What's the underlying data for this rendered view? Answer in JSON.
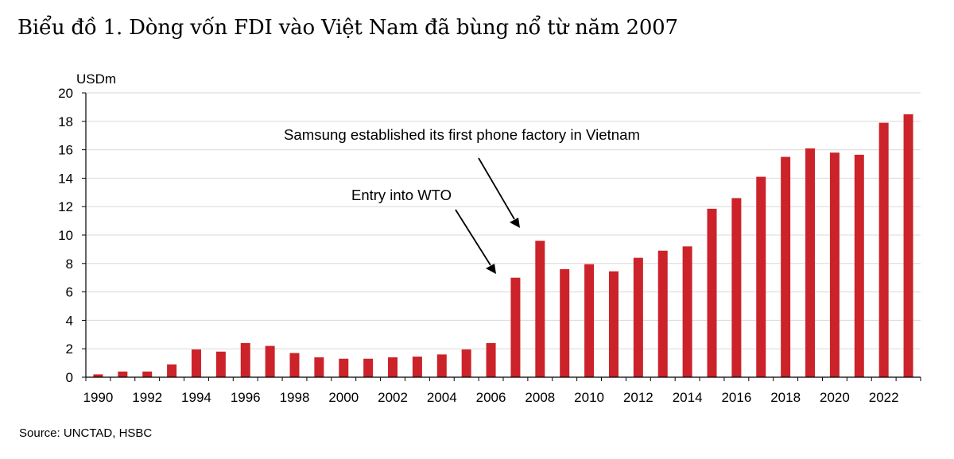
{
  "title": "Biểu đồ 1. Dòng vốn FDI vào Việt Nam đã bùng nổ từ năm 2007",
  "source": "Source: UNCTAD, HSBC",
  "colors": {
    "bar": "#CC2229",
    "grid": "#D9D9D9",
    "axis": "#000000"
  },
  "chart_data": {
    "type": "bar",
    "title": "Biểu đồ 1. Dòng vốn FDI vào Việt Nam đã bùng nổ từ năm 2007",
    "ylabel": "USDm",
    "xlabel": "",
    "ylim": [
      0,
      20
    ],
    "yticks": [
      0,
      2,
      4,
      6,
      8,
      10,
      12,
      14,
      16,
      18,
      20
    ],
    "grid": true,
    "categories": [
      "1990",
      "1991",
      "1992",
      "1993",
      "1994",
      "1995",
      "1996",
      "1997",
      "1998",
      "1999",
      "2000",
      "2001",
      "2002",
      "2003",
      "2004",
      "2005",
      "2006",
      "2007",
      "2008",
      "2009",
      "2010",
      "2011",
      "2012",
      "2013",
      "2014",
      "2015",
      "2016",
      "2017",
      "2018",
      "2019",
      "2020",
      "2021",
      "2022",
      "2023"
    ],
    "xtick_labels": [
      "1990",
      "1992",
      "1994",
      "1996",
      "1998",
      "2000",
      "2002",
      "2004",
      "2006",
      "2008",
      "2010",
      "2012",
      "2014",
      "2016",
      "2018",
      "2020",
      "2022"
    ],
    "values": [
      0.2,
      0.4,
      0.4,
      0.9,
      1.95,
      1.8,
      2.4,
      2.2,
      1.7,
      1.4,
      1.3,
      1.3,
      1.4,
      1.45,
      1.6,
      1.95,
      2.4,
      7.0,
      9.6,
      7.6,
      7.95,
      7.45,
      8.4,
      8.9,
      9.2,
      11.85,
      12.6,
      14.1,
      15.5,
      16.1,
      15.8,
      15.65,
      17.9,
      18.5
    ],
    "annotations": [
      {
        "text": "Samsung established its first phone factory in Vietnam",
        "target": "2008"
      },
      {
        "text": "Entry into WTO",
        "target": "2007"
      }
    ]
  }
}
